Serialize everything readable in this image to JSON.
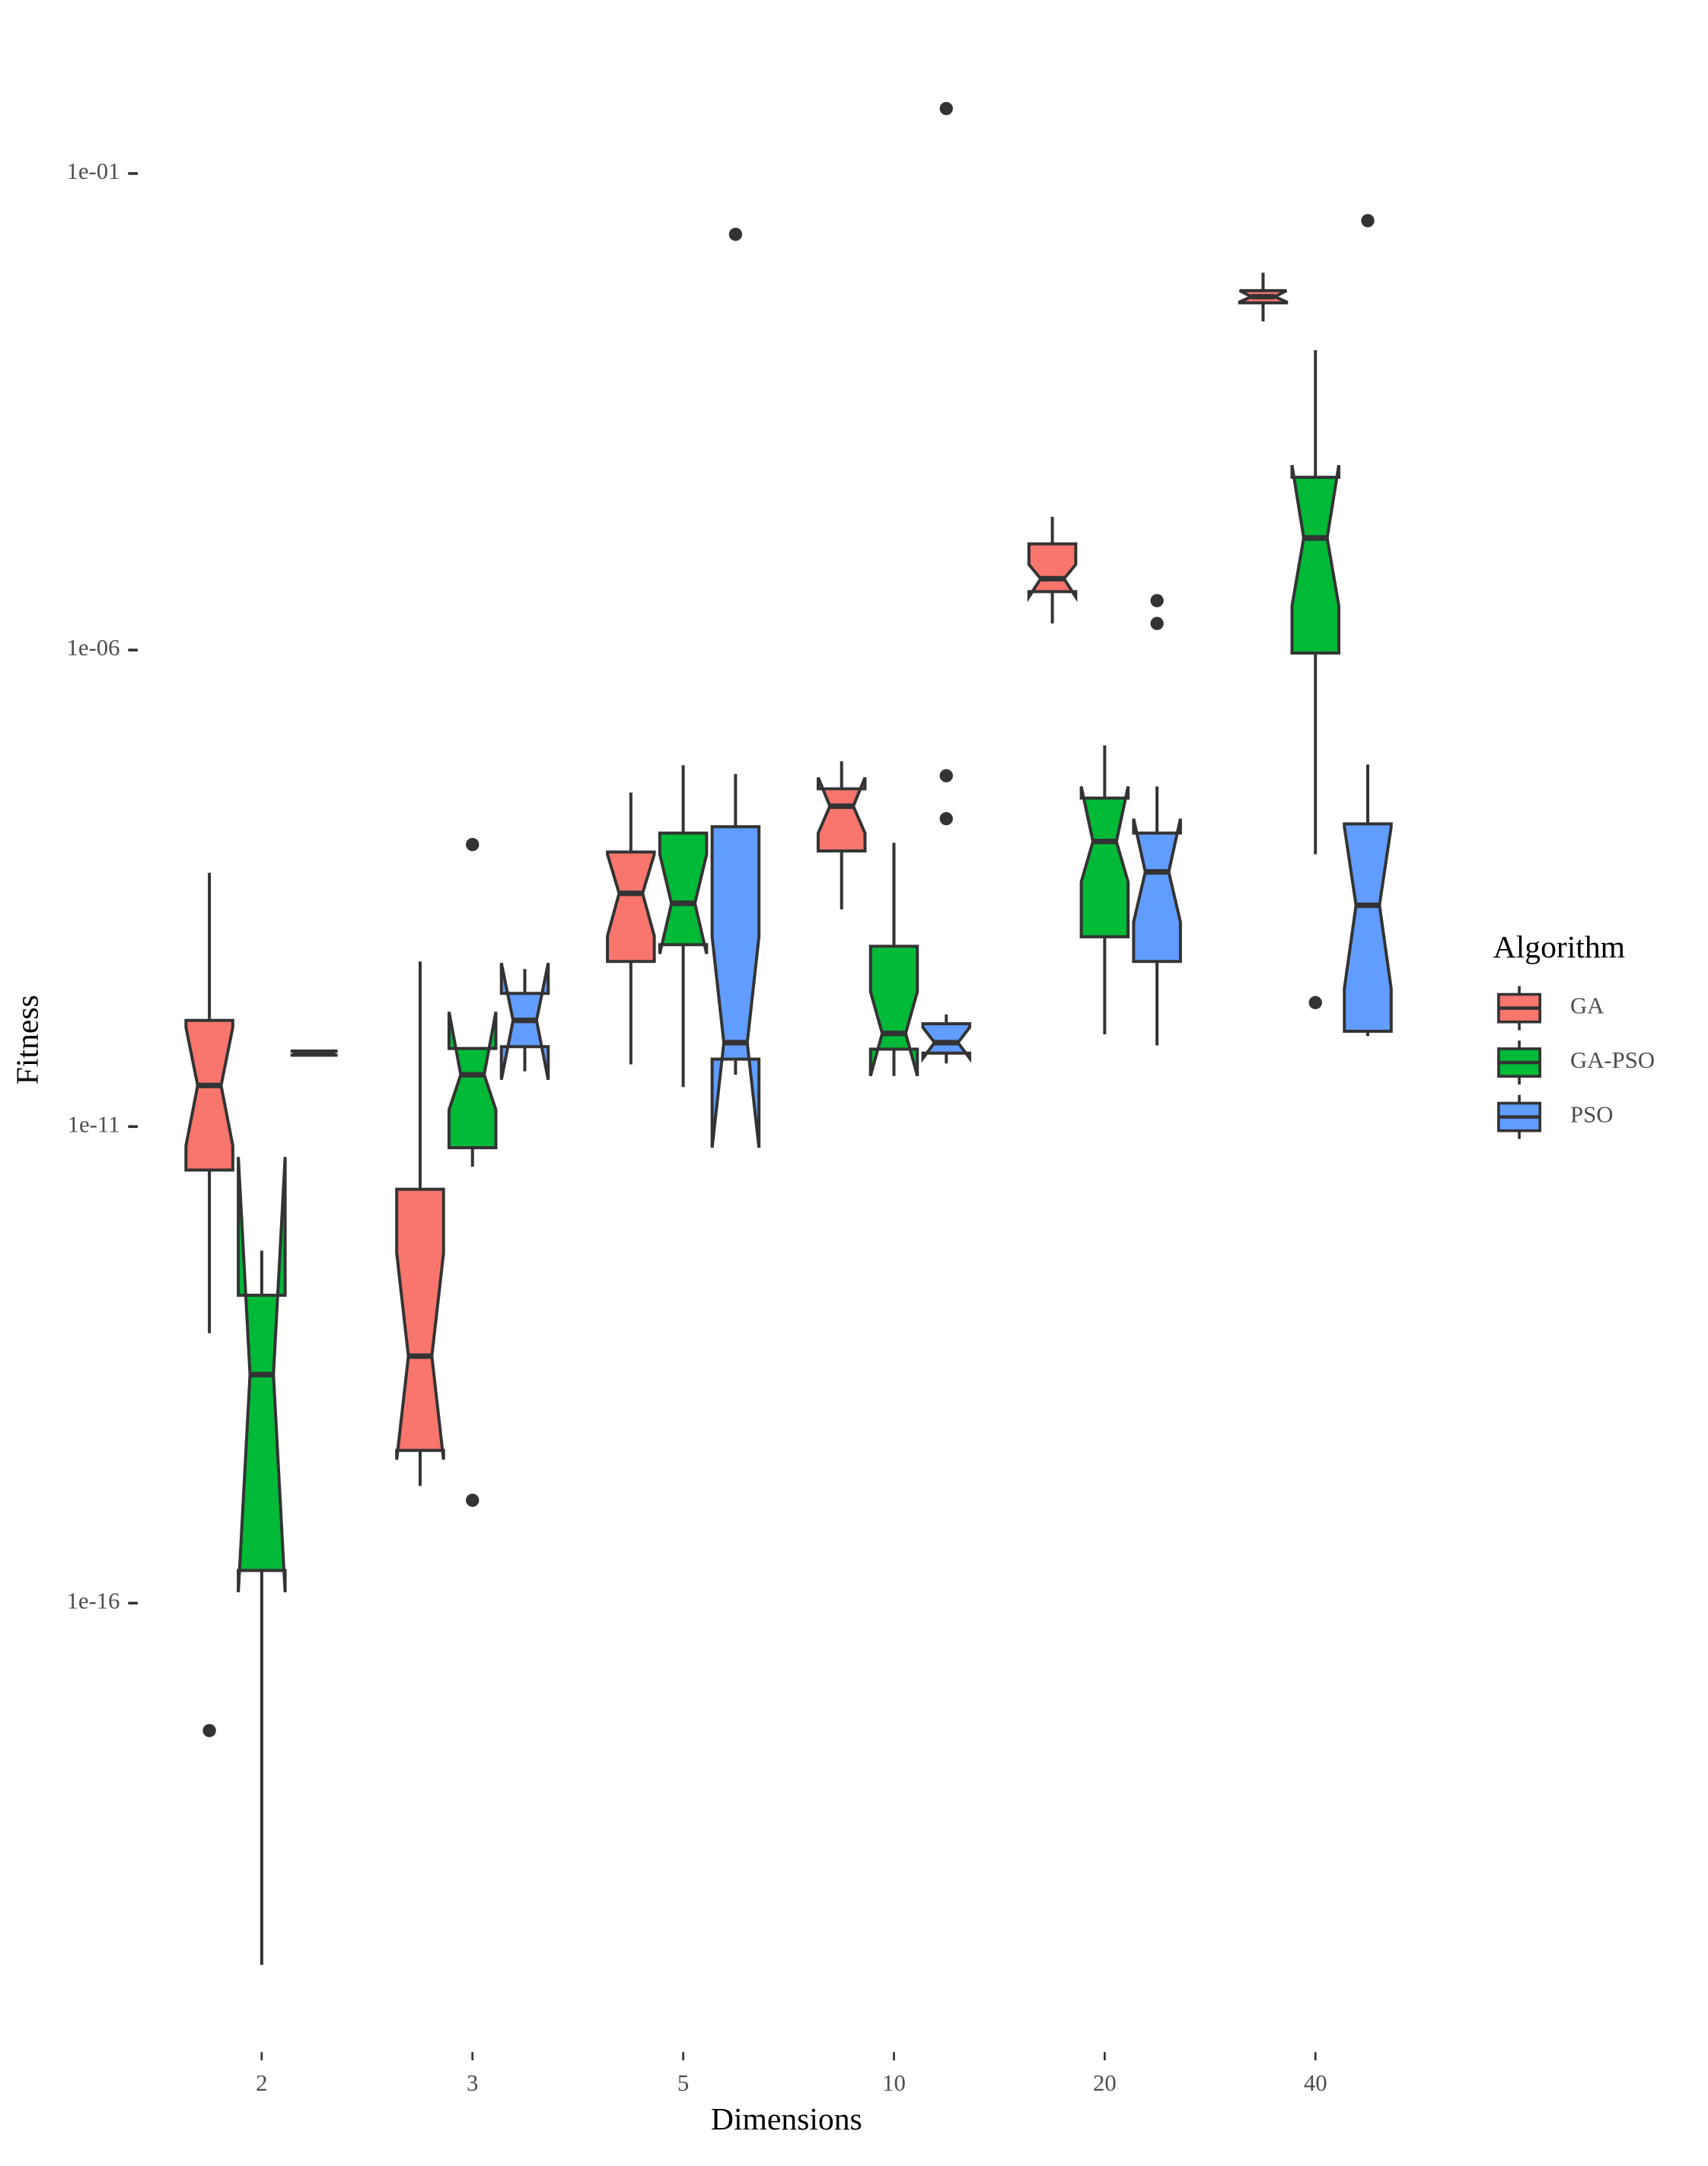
{
  "chart_data": {
    "type": "box",
    "x_label": "Dimensions",
    "y_label": "Fitness",
    "log_y": true,
    "notch": true,
    "ylim": [
      3e-21,
      5
    ],
    "yticks": [
      {
        "value": 0.1,
        "label": "1e-01"
      },
      {
        "value": 1e-06,
        "label": "1e-06"
      },
      {
        "value": 1e-11,
        "label": "1e-11"
      },
      {
        "value": 1e-16,
        "label": "1e-16"
      }
    ],
    "categories": [
      "2",
      "3",
      "5",
      "10",
      "20",
      "40"
    ],
    "legend_title": "Algorithm",
    "legend_position": "right",
    "series": [
      {
        "name": "GA",
        "color": "#f8766d",
        "boxes": [
          {
            "whisker_low": 6.8e-14,
            "q1": 3.5e-12,
            "notch_low": 6.3e-12,
            "median": 2.7e-11,
            "notch_high": 1.1e-10,
            "q3": 1.3e-10,
            "whisker_high": 4.6e-09,
            "outliers": [
              4.6e-18
            ]
          },
          {
            "whisker_low": 1.7e-15,
            "q1": 4e-15,
            "notch_low": 3.2e-15,
            "median": 3.9e-14,
            "notch_high": 4.7e-13,
            "q3": 2.2e-12,
            "whisker_high": 5.4e-10,
            "outliers": []
          },
          {
            "whisker_low": 4.5e-11,
            "q1": 5.4e-10,
            "notch_low": 1e-09,
            "median": 2.8e-09,
            "notch_high": 7.2e-09,
            "q3": 7.6e-09,
            "whisker_high": 3.2e-08,
            "outliers": []
          },
          {
            "whisker_low": 1.9e-09,
            "q1": 7.8e-09,
            "notch_low": 1.2e-08,
            "median": 2.3e-08,
            "notch_high": 4.6e-08,
            "q3": 3.5e-08,
            "whisker_high": 6.8e-08,
            "outliers": []
          },
          {
            "whisker_low": 1.9e-06,
            "q1": 4.1e-06,
            "notch_low": 3.6e-06,
            "median": 5.6e-06,
            "notch_high": 7.9e-06,
            "q3": 1.3e-05,
            "whisker_high": 2.5e-05,
            "outliers": []
          },
          {
            "whisker_low": 0.0028,
            "q1": 0.0044,
            "notch_low": 0.0045,
            "median": 0.0051,
            "notch_high": 0.0059,
            "q3": 0.0059,
            "whisker_high": 0.0091,
            "outliers": []
          }
        ]
      },
      {
        "name": "GA-PSO",
        "color": "#00ba38",
        "boxes": [
          {
            "whisker_low": 1.6e-20,
            "q1": 2.2e-16,
            "notch_low": 1.3e-16,
            "median": 2.5e-14,
            "notch_high": 4.8e-12,
            "q3": 1.7e-13,
            "whisker_high": 5e-13,
            "outliers": []
          },
          {
            "whisker_low": 3.8e-12,
            "q1": 6e-12,
            "notch_low": 1.5e-11,
            "median": 3.5e-11,
            "notch_high": 1.6e-10,
            "q3": 6.6e-11,
            "whisker_high": 6.6e-11,
            "outliers": [
              9.1e-09,
              1.2e-15
            ]
          },
          {
            "whisker_low": 2.6e-11,
            "q1": 8.1e-10,
            "notch_low": 6.5e-10,
            "median": 2.2e-09,
            "notch_high": 7.2e-09,
            "q3": 1.2e-08,
            "whisker_high": 6.2e-08,
            "outliers": []
          },
          {
            "whisker_low": 3.4e-11,
            "q1": 6.5e-11,
            "notch_low": 3.4e-11,
            "median": 9.5e-11,
            "notch_high": 2.6e-10,
            "q3": 7.8e-10,
            "whisker_high": 9.5e-09,
            "outliers": []
          },
          {
            "whisker_low": 9.3e-11,
            "q1": 9.8e-10,
            "notch_low": 3.7e-09,
            "median": 9.8e-09,
            "notch_high": 3.7e-08,
            "q3": 2.8e-08,
            "whisker_high": 1e-07,
            "outliers": []
          },
          {
            "whisker_low": 7.2e-09,
            "q1": 9.3e-07,
            "notch_low": 2.9e-06,
            "median": 1.5e-05,
            "notch_high": 8.7e-05,
            "q3": 6.5e-05,
            "whisker_high": 0.0014,
            "outliers": [
              2e-10
            ]
          }
        ]
      },
      {
        "name": "PSO",
        "color": "#619cff",
        "boxes": [
          {
            "whisker_low": 5.6e-11,
            "q1": 5.6e-11,
            "notch_low": 5.6e-11,
            "median": 5.9e-11,
            "notch_high": 6.2e-11,
            "q3": 6.2e-11,
            "whisker_high": 6.2e-11,
            "outliers": []
          },
          {
            "whisker_low": 3.8e-11,
            "q1": 6.9e-11,
            "notch_low": 3.1e-11,
            "median": 1.3e-10,
            "notch_high": 5.2e-10,
            "q3": 2.5e-10,
            "whisker_high": 4.5e-10,
            "outliers": []
          },
          {
            "whisker_low": 3.5e-11,
            "q1": 5.1e-11,
            "notch_low": 6e-12,
            "median": 7.6e-11,
            "notch_high": 9.8e-10,
            "q3": 1.4e-08,
            "whisker_high": 5e-08,
            "outliers": [
              0.023
            ]
          },
          {
            "whisker_low": 4.6e-11,
            "q1": 5.9e-11,
            "notch_low": 5.2e-11,
            "median": 7.6e-11,
            "notch_high": 1.1e-10,
            "q3": 1.2e-10,
            "whisker_high": 1.5e-10,
            "outliers": [
              0.48,
              4.8e-08,
              1.7e-08
            ]
          },
          {
            "whisker_low": 7.1e-11,
            "q1": 5.4e-10,
            "notch_low": 1.4e-09,
            "median": 4.7e-09,
            "notch_high": 1.7e-08,
            "q3": 1.2e-08,
            "whisker_high": 3.7e-08,
            "outliers": [
              3.3e-06,
              1.9e-06
            ]
          },
          {
            "whisker_low": 8.9e-11,
            "q1": 1e-10,
            "notch_low": 2.8e-10,
            "median": 2.1e-09,
            "notch_high": 1.4e-08,
            "q3": 1.5e-08,
            "whisker_high": 6.3e-08,
            "outliers": [
              0.032
            ]
          }
        ]
      }
    ]
  }
}
